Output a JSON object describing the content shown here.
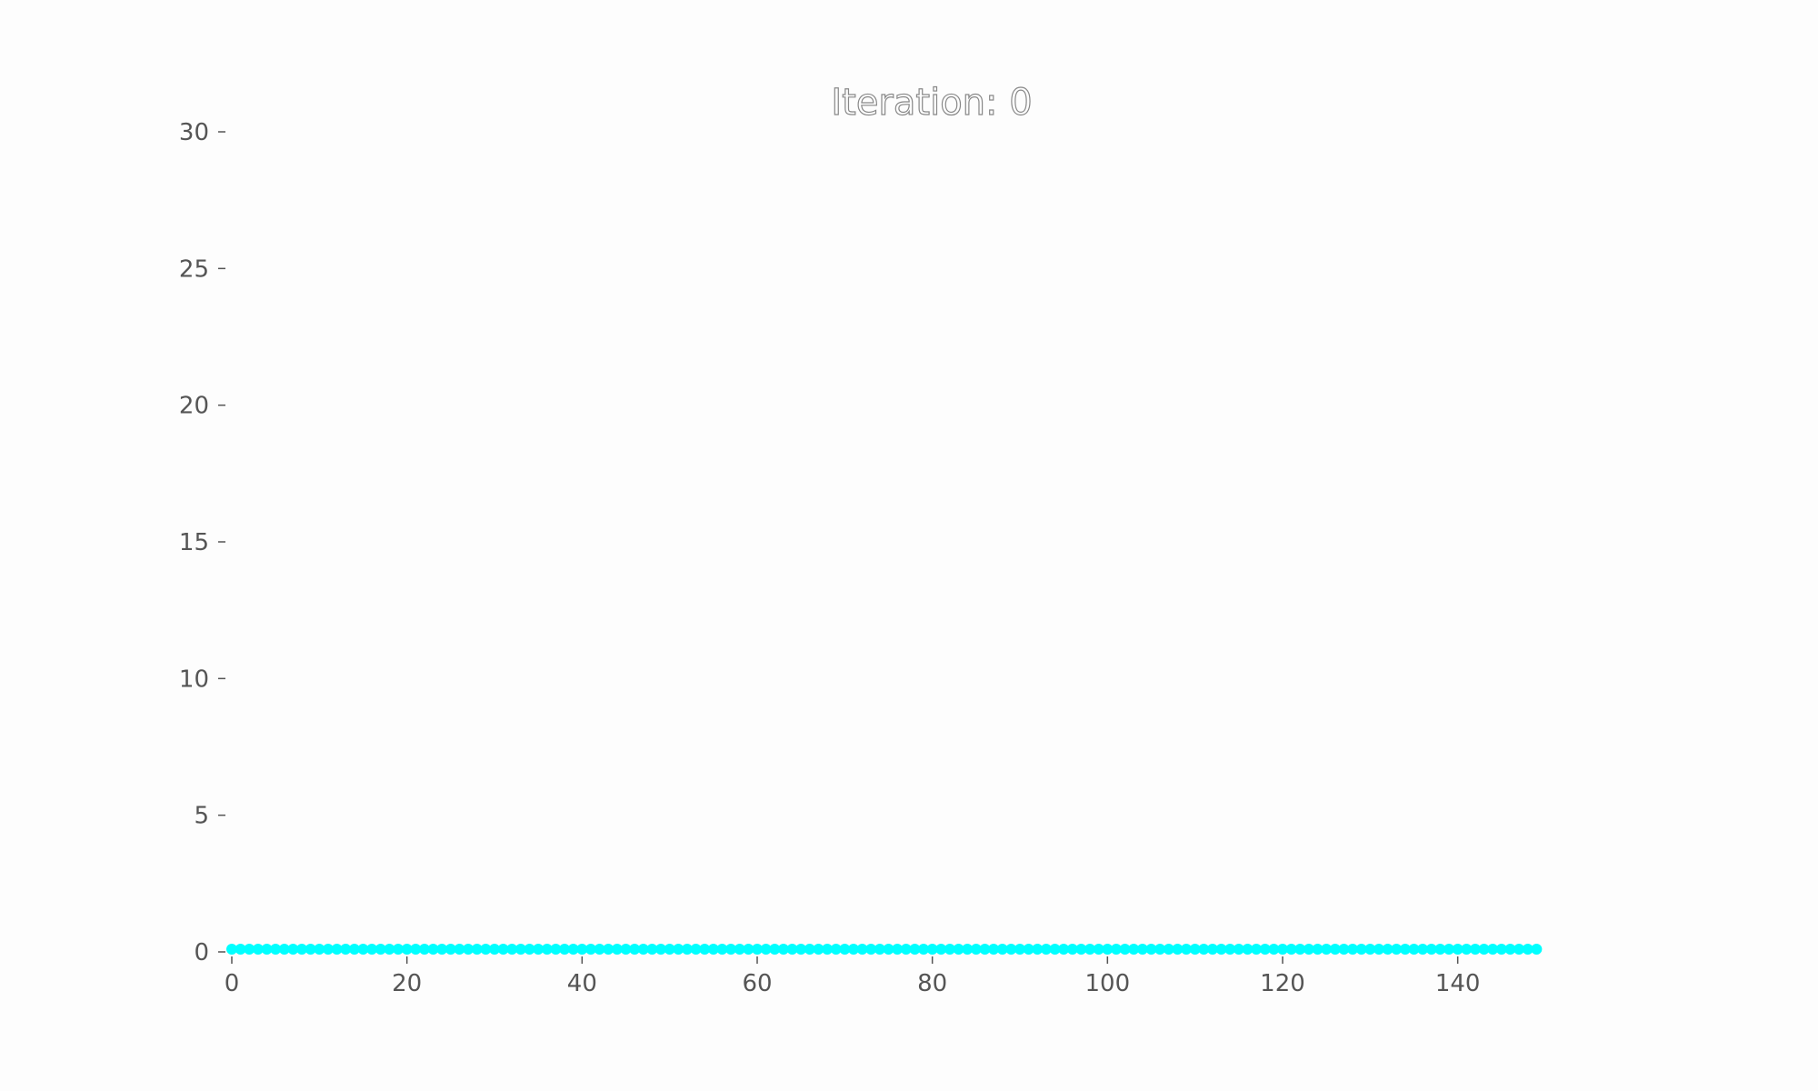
{
  "chart_data": {
    "type": "scatter",
    "title": "Iteration: 0",
    "xlabel": "",
    "ylabel": "",
    "xlim": [
      0,
      150
    ],
    "ylim": [
      0,
      30
    ],
    "xticks": [
      0,
      20,
      40,
      60,
      80,
      100,
      120,
      140
    ],
    "yticks": [
      0,
      5,
      10,
      15,
      20,
      25,
      30
    ],
    "grid": false,
    "series": [
      {
        "color": "#00ffff",
        "x_start": 0,
        "x_end": 149,
        "x_step": 1,
        "y": 0.1
      }
    ]
  }
}
